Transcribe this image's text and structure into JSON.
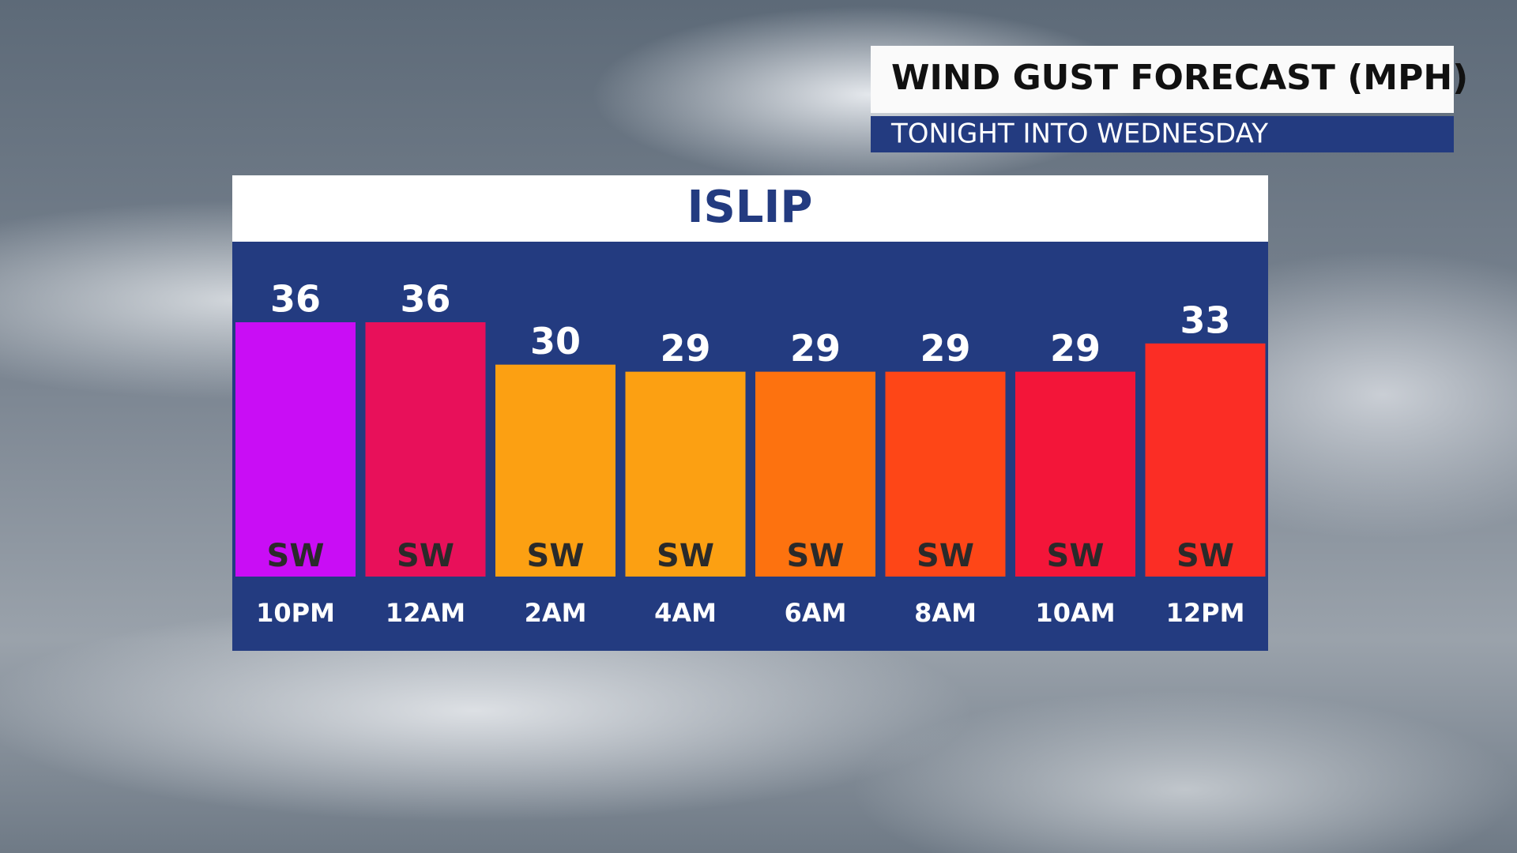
{
  "header": {
    "title": "WIND GUST FORECAST (MPH)",
    "subtitle": "TONIGHT INTO WEDNESDAY"
  },
  "chart_data": {
    "type": "bar",
    "title": "ISLIP",
    "categories": [
      "10PM",
      "12AM",
      "2AM",
      "4AM",
      "6AM",
      "8AM",
      "10AM",
      "12PM"
    ],
    "values": [
      36,
      36,
      30,
      29,
      29,
      29,
      29,
      33
    ],
    "directions": [
      "SW",
      "SW",
      "SW",
      "SW",
      "SW",
      "SW",
      "SW",
      "SW"
    ],
    "colors": [
      "#c90df5",
      "#e8105a",
      "#fca012",
      "#fca012",
      "#fd720f",
      "#fe4617",
      "#f31539",
      "#fb2d25"
    ]
  }
}
